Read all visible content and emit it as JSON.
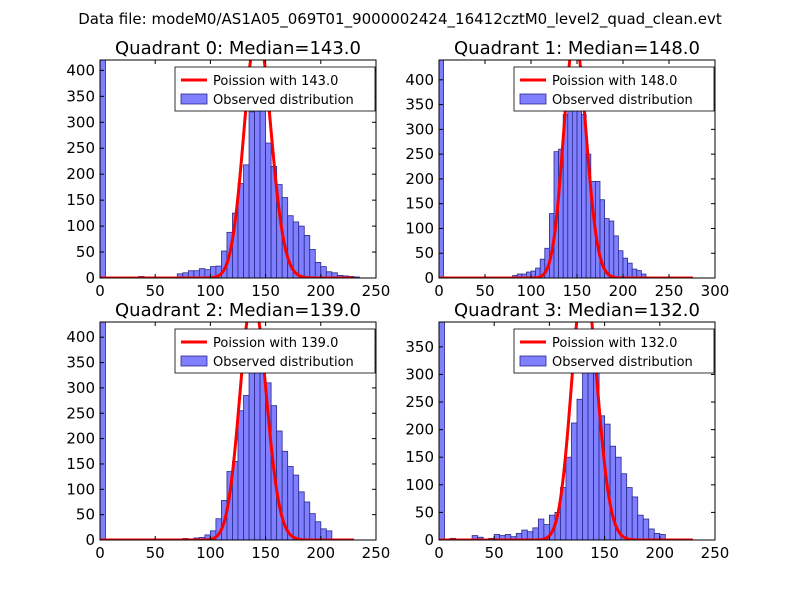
{
  "suptitle": "Data file: modeM0/AS1A05_069T01_9000002424_16412cztM0_level2_quad_clean.evt",
  "colors": {
    "bar_fill": "#7f7fff",
    "bar_edge": "#2a2a8a",
    "poisson_line": "#ff0000"
  },
  "chart_data": [
    {
      "type": "bar",
      "title": "Quadrant 0: Median=143.0",
      "legend": [
        "Poission with 143.0",
        "Observed distribution"
      ],
      "legend_position": "top-right",
      "median": 143.0,
      "xlim": [
        0,
        250
      ],
      "ylim": [
        0,
        420
      ],
      "xticks": [
        0,
        50,
        100,
        150,
        200,
        250
      ],
      "yticks": [
        0,
        50,
        100,
        150,
        200,
        250,
        300,
        350,
        400
      ],
      "bin_width": 5,
      "bins": [
        [
          0,
          420
        ],
        [
          15,
          2
        ],
        [
          20,
          2
        ],
        [
          35,
          3
        ],
        [
          55,
          2
        ],
        [
          70,
          8
        ],
        [
          75,
          10
        ],
        [
          80,
          14
        ],
        [
          85,
          14
        ],
        [
          90,
          18
        ],
        [
          95,
          16
        ],
        [
          100,
          22
        ],
        [
          105,
          23
        ],
        [
          110,
          52
        ],
        [
          115,
          88
        ],
        [
          120,
          125
        ],
        [
          125,
          182
        ],
        [
          130,
          218
        ],
        [
          135,
          320
        ],
        [
          140,
          322
        ],
        [
          145,
          375
        ],
        [
          150,
          260
        ],
        [
          155,
          215
        ],
        [
          160,
          180
        ],
        [
          165,
          155
        ],
        [
          170,
          120
        ],
        [
          175,
          108
        ],
        [
          180,
          100
        ],
        [
          185,
          82
        ],
        [
          190,
          55
        ],
        [
          195,
          30
        ],
        [
          200,
          22
        ],
        [
          205,
          12
        ],
        [
          210,
          10
        ],
        [
          215,
          5
        ],
        [
          220,
          4
        ],
        [
          225,
          3
        ],
        [
          230,
          2
        ]
      ],
      "poisson_scale": 14400
    },
    {
      "type": "bar",
      "title": "Quadrant 1: Median=148.0",
      "legend": [
        "Poission with 148.0",
        "Observed distribution"
      ],
      "legend_position": "top-right",
      "median": 148.0,
      "xlim": [
        0,
        300
      ],
      "ylim": [
        0,
        440
      ],
      "xticks": [
        0,
        50,
        100,
        150,
        200,
        250,
        300
      ],
      "yticks": [
        0,
        50,
        100,
        150,
        200,
        250,
        300,
        350,
        400
      ],
      "bin_width": 5,
      "bins": [
        [
          0,
          440
        ],
        [
          80,
          5
        ],
        [
          85,
          8
        ],
        [
          90,
          8
        ],
        [
          95,
          12
        ],
        [
          100,
          14
        ],
        [
          105,
          20
        ],
        [
          110,
          38
        ],
        [
          115,
          60
        ],
        [
          120,
          130
        ],
        [
          125,
          255
        ],
        [
          130,
          260
        ],
        [
          135,
          330
        ],
        [
          140,
          380
        ],
        [
          145,
          400
        ],
        [
          150,
          355
        ],
        [
          155,
          330
        ],
        [
          160,
          250
        ],
        [
          165,
          195
        ],
        [
          170,
          195
        ],
        [
          175,
          158
        ],
        [
          180,
          120
        ],
        [
          185,
          115
        ],
        [
          190,
          85
        ],
        [
          195,
          55
        ],
        [
          200,
          40
        ],
        [
          205,
          30
        ],
        [
          210,
          18
        ],
        [
          215,
          15
        ],
        [
          220,
          8
        ]
      ],
      "poisson_scale": 14800
    },
    {
      "type": "bar",
      "title": "Quadrant 2: Median=139.0",
      "legend": [
        "Poission with 139.0",
        "Observed distribution"
      ],
      "legend_position": "top-right",
      "median": 139.0,
      "xlim": [
        0,
        250
      ],
      "ylim": [
        0,
        430
      ],
      "xticks": [
        0,
        50,
        100,
        150,
        200,
        250
      ],
      "yticks": [
        0,
        50,
        100,
        150,
        200,
        250,
        300,
        350,
        400
      ],
      "bin_width": 5,
      "bins": [
        [
          0,
          430
        ],
        [
          75,
          3
        ],
        [
          85,
          4
        ],
        [
          90,
          5
        ],
        [
          95,
          10
        ],
        [
          100,
          18
        ],
        [
          105,
          42
        ],
        [
          110,
          78
        ],
        [
          115,
          135
        ],
        [
          120,
          155
        ],
        [
          125,
          255
        ],
        [
          130,
          285
        ],
        [
          135,
          370
        ],
        [
          140,
          395
        ],
        [
          145,
          360
        ],
        [
          150,
          310
        ],
        [
          155,
          265
        ],
        [
          160,
          215
        ],
        [
          165,
          175
        ],
        [
          170,
          145
        ],
        [
          175,
          128
        ],
        [
          180,
          95
        ],
        [
          185,
          75
        ],
        [
          190,
          52
        ],
        [
          195,
          36
        ],
        [
          200,
          22
        ],
        [
          205,
          18
        ]
      ],
      "poisson_scale": 14200
    },
    {
      "type": "bar",
      "title": "Quadrant 3: Median=132.0",
      "legend": [
        "Poission with 132.0",
        "Observed distribution"
      ],
      "legend_position": "top-right",
      "median": 132.0,
      "xlim": [
        0,
        250
      ],
      "ylim": [
        0,
        395
      ],
      "xticks": [
        0,
        50,
        100,
        150,
        200,
        250
      ],
      "yticks": [
        0,
        50,
        100,
        150,
        200,
        250,
        300,
        350
      ],
      "bin_width": 5,
      "bins": [
        [
          0,
          395
        ],
        [
          10,
          3
        ],
        [
          30,
          8
        ],
        [
          35,
          5
        ],
        [
          45,
          3
        ],
        [
          50,
          10
        ],
        [
          55,
          8
        ],
        [
          60,
          10
        ],
        [
          65,
          6
        ],
        [
          70,
          12
        ],
        [
          75,
          18
        ],
        [
          80,
          15
        ],
        [
          85,
          22
        ],
        [
          90,
          38
        ],
        [
          95,
          28
        ],
        [
          100,
          45
        ],
        [
          105,
          50
        ],
        [
          110,
          95
        ],
        [
          115,
          150
        ],
        [
          120,
          212
        ],
        [
          125,
          255
        ],
        [
          130,
          365
        ],
        [
          135,
          370
        ],
        [
          140,
          310
        ],
        [
          145,
          225
        ],
        [
          150,
          210
        ],
        [
          155,
          170
        ],
        [
          160,
          150
        ],
        [
          165,
          120
        ],
        [
          170,
          95
        ],
        [
          175,
          78
        ],
        [
          180,
          45
        ],
        [
          185,
          38
        ],
        [
          190,
          20
        ],
        [
          195,
          12
        ],
        [
          200,
          10
        ]
      ],
      "poisson_scale": 13600
    }
  ]
}
